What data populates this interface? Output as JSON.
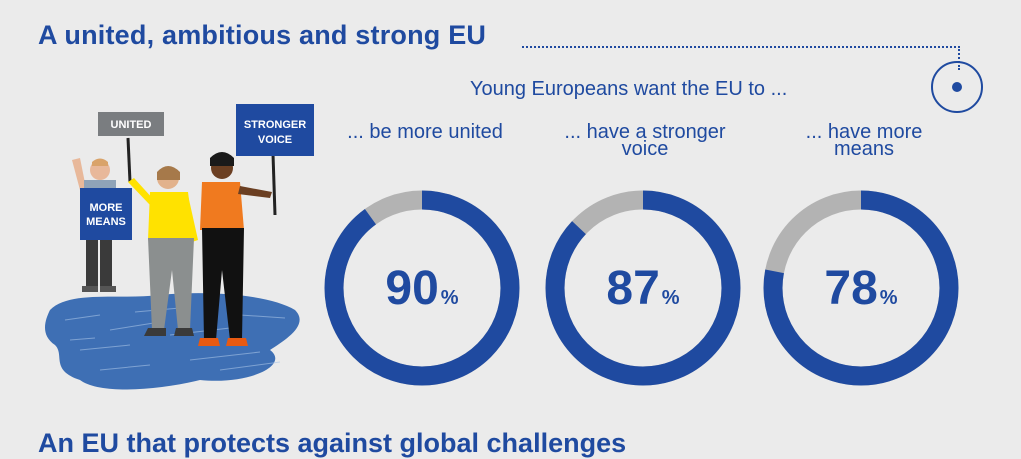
{
  "title": "A united, ambitious and strong EU",
  "intro": "Young Europeans want the EU to ...",
  "illustration": {
    "sign_united": "UNITED",
    "sign_stronger_line1": "STRONGER",
    "sign_stronger_line2": "VOICE",
    "sign_more_line1": "MORE",
    "sign_more_line2": "MEANS"
  },
  "stats": [
    {
      "label_line1": "... be more united",
      "label_line2": "",
      "value": 90,
      "pct": "%"
    },
    {
      "label_line1": "... have a stronger",
      "label_line2": "voice",
      "value": 87,
      "pct": "%"
    },
    {
      "label_line1": "... have more",
      "label_line2": "means",
      "value": 78,
      "pct": "%"
    }
  ],
  "colors": {
    "blue": "#1f4aa0",
    "grey": "#b3b3b3",
    "background": "#ebebeb"
  },
  "next_heading": "An EU that protects against global challenges"
}
